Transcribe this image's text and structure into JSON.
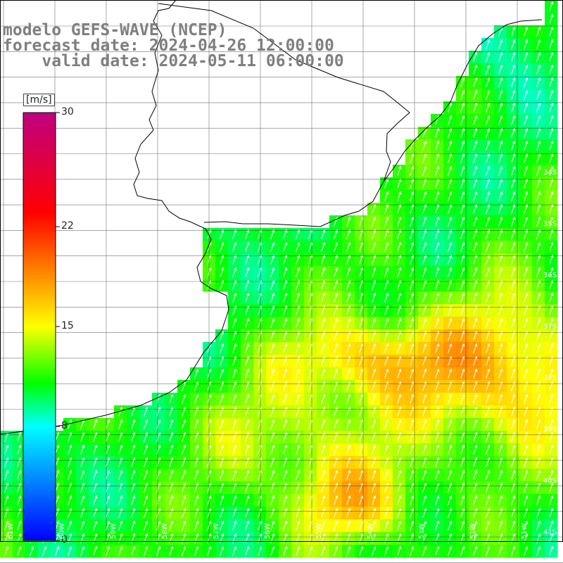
{
  "header": {
    "model": "modelo GEFS-WAVE (NCEP)",
    "forecast": "forecast date: 2024-04-26 12:00:00",
    "valid": "    valid date: 2024-05-11 06:00:00"
  },
  "colorbar": {
    "unit": "[m/s]",
    "ticks": [
      "30",
      "22",
      "15",
      "8",
      "0"
    ],
    "tick_values": [
      30,
      22,
      15,
      8,
      0
    ],
    "range": [
      0,
      30
    ],
    "colors": [
      "#0000ff",
      "#00ffff",
      "#00ff00",
      "#ffff00",
      "#ff8000",
      "#ff0000",
      "#c00080"
    ]
  },
  "map": {
    "lat_labels": [
      "34S",
      "35S",
      "36S",
      "37S",
      "38S",
      "39S",
      "40S",
      "41S"
    ],
    "lon_labels": [
      "61W",
      "60W",
      "59W",
      "58W",
      "57W",
      "56W",
      "55W",
      "54W",
      "53W",
      "52W",
      "51W"
    ],
    "land_color": "#ffffff",
    "coast_color": "#000000",
    "grid_color": "#000000",
    "arrow_color": "#ffffff",
    "arrow_direction": "toward north-northeast"
  }
}
